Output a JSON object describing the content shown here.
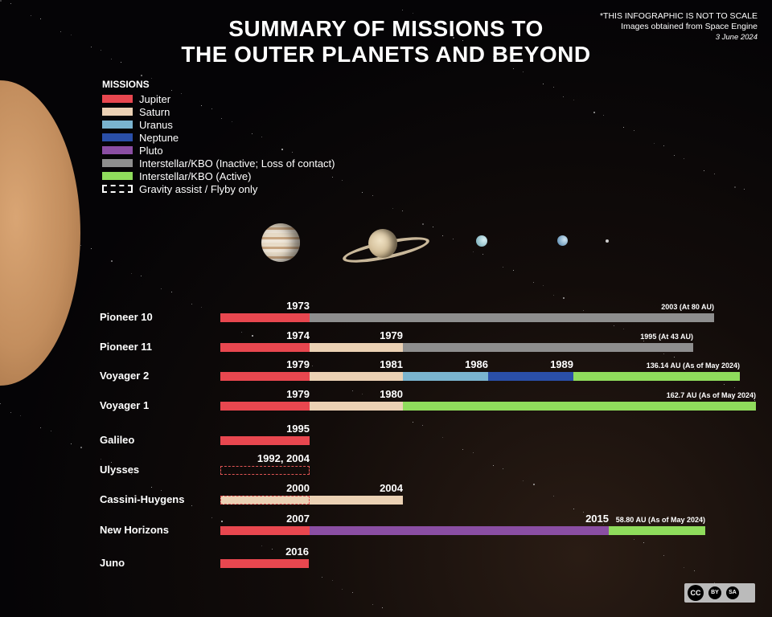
{
  "title_line1": "SUMMARY OF MISSIONS TO",
  "title_line2": "THE OUTER PLANETS AND BEYOND",
  "note": {
    "scale": "*THIS INFOGRAPHIC IS NOT TO SCALE",
    "source": "Images obtained from Space Engine",
    "date": "3 June 2024"
  },
  "legend": {
    "title": "MISSIONS",
    "items": [
      {
        "label": "Jupiter",
        "color": "#e8474f"
      },
      {
        "label": "Saturn",
        "color": "#ebd1b4"
      },
      {
        "label": "Uranus",
        "color": "#7ab4cf"
      },
      {
        "label": "Neptune",
        "color": "#2a4fa8"
      },
      {
        "label": "Pluto",
        "color": "#8a4ea3"
      },
      {
        "label": "Interstellar/KBO (Inactive; Loss of contact)",
        "color": "#8e8e8e"
      },
      {
        "label": "Interstellar/KBO (Active)",
        "color": "#8fdc5c"
      },
      {
        "label": "Gravity assist / Flyby only",
        "color": "dashed"
      }
    ]
  },
  "license": {
    "cc": "CC",
    "by": "BY",
    "sa": "SA"
  },
  "chart_data": {
    "type": "timeline",
    "missions": [
      {
        "name": "Pioneer 10",
        "segments": [
          {
            "target": "Jupiter",
            "label": "1973"
          },
          {
            "target": "Interstellar/KBO (Inactive)",
            "label": "2003 (At 80 AU)"
          }
        ]
      },
      {
        "name": "Pioneer 11",
        "segments": [
          {
            "target": "Jupiter",
            "label": "1974"
          },
          {
            "target": "Saturn",
            "label": "1979"
          },
          {
            "target": "Interstellar/KBO (Inactive)",
            "label": "1995 (At 43 AU)"
          }
        ]
      },
      {
        "name": "Voyager 2",
        "segments": [
          {
            "target": "Jupiter",
            "label": "1979"
          },
          {
            "target": "Saturn",
            "label": "1981"
          },
          {
            "target": "Uranus",
            "label": "1986"
          },
          {
            "target": "Neptune",
            "label": "1989"
          },
          {
            "target": "Interstellar/KBO (Active)",
            "label": "136.14 AU (As of May 2024)"
          }
        ]
      },
      {
        "name": "Voyager 1",
        "segments": [
          {
            "target": "Jupiter",
            "label": "1979"
          },
          {
            "target": "Saturn",
            "label": "1980"
          },
          {
            "target": "Interstellar/KBO (Active)",
            "label": "162.7 AU (As of May 2024)"
          }
        ]
      },
      {
        "name": "Galileo",
        "segments": [
          {
            "target": "Jupiter",
            "label": "1995"
          }
        ]
      },
      {
        "name": "Ulysses",
        "segments": [
          {
            "target": "Jupiter",
            "label": "1992, 2004",
            "flyby": true
          }
        ]
      },
      {
        "name": "Cassini-Huygens",
        "segments": [
          {
            "target": "Jupiter",
            "label": "2000",
            "flyby": true
          },
          {
            "target": "Saturn",
            "label": "2004"
          }
        ]
      },
      {
        "name": "New Horizons",
        "segments": [
          {
            "target": "Jupiter",
            "label": "2007"
          },
          {
            "target": "Pluto",
            "label": "2015"
          },
          {
            "target": "Interstellar/KBO (Active)",
            "label": "58.80 AU (As of May 2024)"
          }
        ]
      },
      {
        "name": "Juno",
        "segments": [
          {
            "target": "Jupiter",
            "label": "2016"
          }
        ]
      }
    ]
  }
}
